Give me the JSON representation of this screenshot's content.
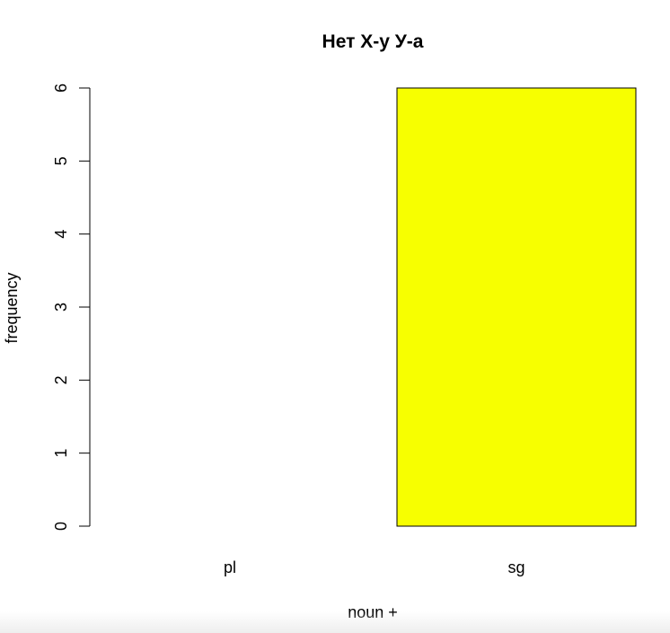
{
  "chart_data": {
    "type": "bar",
    "title": "Нет Х-у У-а",
    "xlabel": "noun +",
    "ylabel": "frequency",
    "categories": [
      "pl",
      "sg"
    ],
    "values": [
      0,
      6
    ],
    "ylim": [
      0,
      6
    ],
    "yticks": [
      "0",
      "1",
      "2",
      "3",
      "4",
      "5",
      "6"
    ],
    "bar_color": "#f7ff00",
    "grid": false
  }
}
